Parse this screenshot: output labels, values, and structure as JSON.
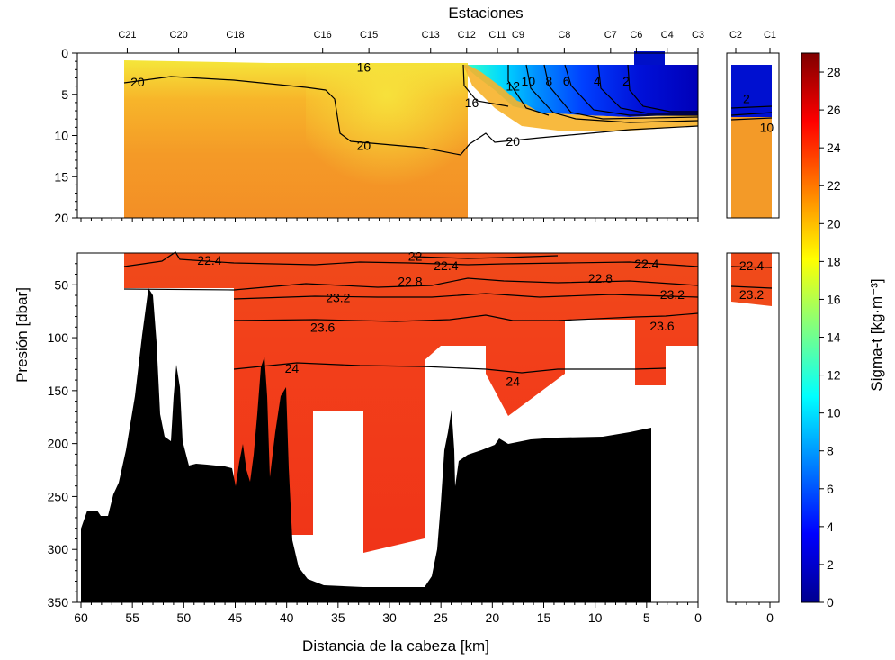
{
  "chart_data": {
    "type": "heatmap",
    "top_axis_title": "Estaciones",
    "xlabel": "Distancia de la cabeza [km]",
    "ylabel": "Presión [dbar]",
    "colorbar_label": "Sigma-t [kg·m⁻³]",
    "colorbar_range": [
      0,
      29
    ],
    "colorbar_ticks": [
      0,
      2,
      4,
      6,
      8,
      10,
      12,
      14,
      16,
      18,
      20,
      22,
      24,
      26,
      28
    ],
    "colormap": [
      "#00008f",
      "#0000ff",
      "#0080ff",
      "#00ffff",
      "#80ff80",
      "#ffff00",
      "#ff8000",
      "#ff0000",
      "#800000"
    ],
    "stations": [
      {
        "name": "C21",
        "km": 55.5
      },
      {
        "name": "C20",
        "km": 50.5
      },
      {
        "name": "C18",
        "km": 45
      },
      {
        "name": "C16",
        "km": 36.5
      },
      {
        "name": "C15",
        "km": 32
      },
      {
        "name": "C13",
        "km": 26
      },
      {
        "name": "C12",
        "km": 22.5
      },
      {
        "name": "C11",
        "km": 19.5
      },
      {
        "name": "C9",
        "km": 17.5
      },
      {
        "name": "C8",
        "km": 13
      },
      {
        "name": "C7",
        "km": 8.5
      },
      {
        "name": "C6",
        "km": 6
      },
      {
        "name": "C4",
        "km": 3
      },
      {
        "name": "C3",
        "km": 0
      },
      {
        "name": "C2",
        "km": 3.3
      },
      {
        "name": "C1",
        "km": 0
      }
    ],
    "panels": [
      {
        "id": "surface",
        "xlim": [
          60,
          0
        ],
        "ylim": [
          0,
          20
        ],
        "xticks": [
          60,
          55,
          50,
          45,
          40,
          35,
          30,
          25,
          20,
          15,
          10,
          5,
          0
        ],
        "yticks": [
          0,
          5,
          10,
          15,
          20
        ],
        "contour_labels": [
          {
            "text": "20",
            "x": 54.5,
            "y": 3.5
          },
          {
            "text": "16",
            "x": 32.5,
            "y": 1.7
          },
          {
            "text": "16",
            "x": 22,
            "y": 6
          },
          {
            "text": "12",
            "x": 18,
            "y": 4
          },
          {
            "text": "10",
            "x": 16.5,
            "y": 3.4
          },
          {
            "text": "8",
            "x": 14.5,
            "y": 3.4
          },
          {
            "text": "6",
            "x": 12.8,
            "y": 3.4
          },
          {
            "text": "4",
            "x": 9.8,
            "y": 3.4
          },
          {
            "text": "2",
            "x": 7,
            "y": 3.4
          },
          {
            "text": "20",
            "x": 32.5,
            "y": 11.2
          },
          {
            "text": "20",
            "x": 18,
            "y": 10.7
          }
        ]
      },
      {
        "id": "deep",
        "xlim": [
          60,
          0
        ],
        "ylim": [
          20,
          350
        ],
        "xticks": [
          60,
          55,
          50,
          45,
          40,
          35,
          30,
          25,
          20,
          15,
          10,
          5,
          0
        ],
        "yticks": [
          50,
          100,
          150,
          200,
          250,
          300,
          350
        ],
        "contour_labels": [
          {
            "text": "22.4",
            "x": 47.5,
            "y": 27
          },
          {
            "text": "22",
            "x": 27.5,
            "y": 23
          },
          {
            "text": "22.4",
            "x": 24.5,
            "y": 32
          },
          {
            "text": "22.4",
            "x": 5,
            "y": 30
          },
          {
            "text": "22.8",
            "x": 28,
            "y": 47
          },
          {
            "text": "22.8",
            "x": 9.5,
            "y": 44
          },
          {
            "text": "23.2",
            "x": 35,
            "y": 62
          },
          {
            "text": "23.2",
            "x": 2.5,
            "y": 59
          },
          {
            "text": "23.6",
            "x": 36.5,
            "y": 90
          },
          {
            "text": "23.6",
            "x": 3.5,
            "y": 89
          },
          {
            "text": "24",
            "x": 39.5,
            "y": 129
          },
          {
            "text": "24",
            "x": 18,
            "y": 141
          }
        ]
      },
      {
        "id": "side-surface",
        "xlim": [
          4,
          0
        ],
        "ylim": [
          0,
          20
        ],
        "xticks": [
          0
        ],
        "contour_labels": [
          {
            "text": "2",
            "x": 2.5,
            "y": 5.5
          },
          {
            "text": "10",
            "x": 0.5,
            "y": 9
          }
        ]
      },
      {
        "id": "side-deep",
        "xlim": [
          4,
          0
        ],
        "ylim": [
          20,
          350
        ],
        "xticks": [
          0
        ],
        "contour_labels": [
          {
            "text": "22.4",
            "x": 2,
            "y": 32
          },
          {
            "text": "23.2",
            "x": 2,
            "y": 59
          }
        ]
      }
    ]
  }
}
